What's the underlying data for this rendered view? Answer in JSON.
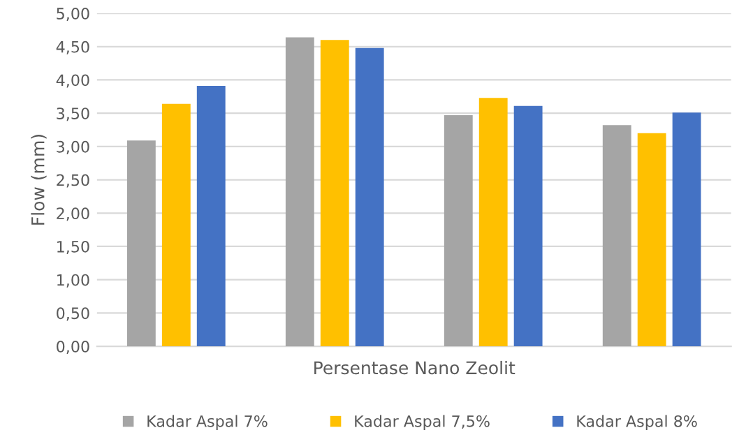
{
  "chart_data": {
    "type": "bar",
    "xlabel": "Persentase Nano Zeolit",
    "ylabel": "Flow (mm)",
    "categories": [
      null,
      null,
      null,
      null
    ],
    "series": [
      {
        "name": "Kadar Aspal 7%",
        "color": "#a5a5a5",
        "values": [
          3.09,
          4.64,
          3.47,
          3.32
        ]
      },
      {
        "name": "Kadar Aspal 7,5%",
        "color": "#ffc000",
        "values": [
          3.64,
          4.6,
          3.73,
          3.2
        ]
      },
      {
        "name": "Kadar Aspal 8%",
        "color": "#4472c4",
        "values": [
          3.91,
          4.48,
          3.61,
          3.51
        ]
      }
    ],
    "ylim": [
      0,
      5
    ],
    "yticks": [
      {
        "value": 0,
        "label": "0,00"
      },
      {
        "value": 0.5,
        "label": "0,50"
      },
      {
        "value": 1,
        "label": "1,00"
      },
      {
        "value": 1.5,
        "label": "1,50"
      },
      {
        "value": 2,
        "label": "2,00"
      },
      {
        "value": 2.5,
        "label": "2,50"
      },
      {
        "value": 3,
        "label": "3,00"
      },
      {
        "value": 3.5,
        "label": "3,50"
      },
      {
        "value": 4,
        "label": "4,00"
      },
      {
        "value": 4.5,
        "label": "4,50"
      },
      {
        "value": 5,
        "label": "5,00"
      }
    ],
    "grid": "y",
    "legend": "bottom"
  }
}
